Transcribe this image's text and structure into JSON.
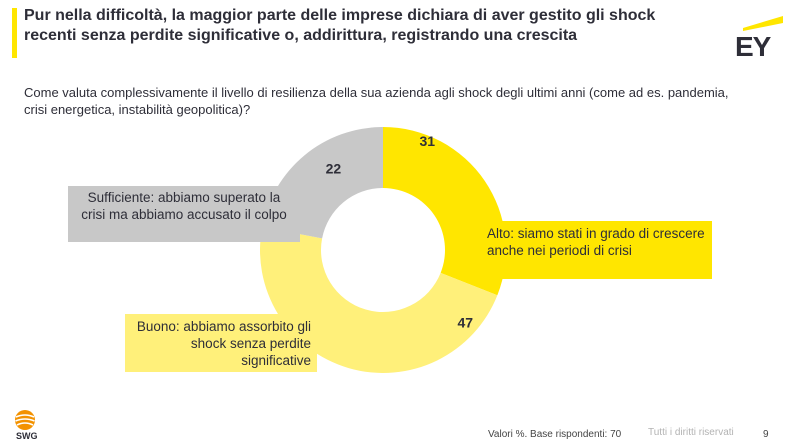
{
  "header": {
    "title": "Pur nella difficoltà, la maggior parte delle imprese dichiara di aver gestito gli shock recenti senza perdite significative o, addirittura, registrando una crescita",
    "logo_text": "EY"
  },
  "question": "Come valuta complessivamente il livello di resilienza della sua azienda agli shock degli ultimi anni (come ad es. pandemia, crisi energetica, instabilità geopolitica)?",
  "chart_data": {
    "type": "pie",
    "donut": true,
    "categories": [
      "Alto: siamo stati in grado di crescere anche nei periodi di crisi",
      "Buono: abbiamo assorbito gli shock senza perdite significative",
      "Sufficiente: abbiamo superato la crisi ma abbiamo accusato il colpo"
    ],
    "values": [
      31,
      47,
      22
    ],
    "colors": [
      "#ffe600",
      "#fff07a",
      "#c8c8c8"
    ],
    "unit": "%"
  },
  "footer": {
    "note": "Valori %. Base rispondenti: 70",
    "rights": "Tutti i diritti riservati",
    "page": "9",
    "brand": "SWG"
  }
}
